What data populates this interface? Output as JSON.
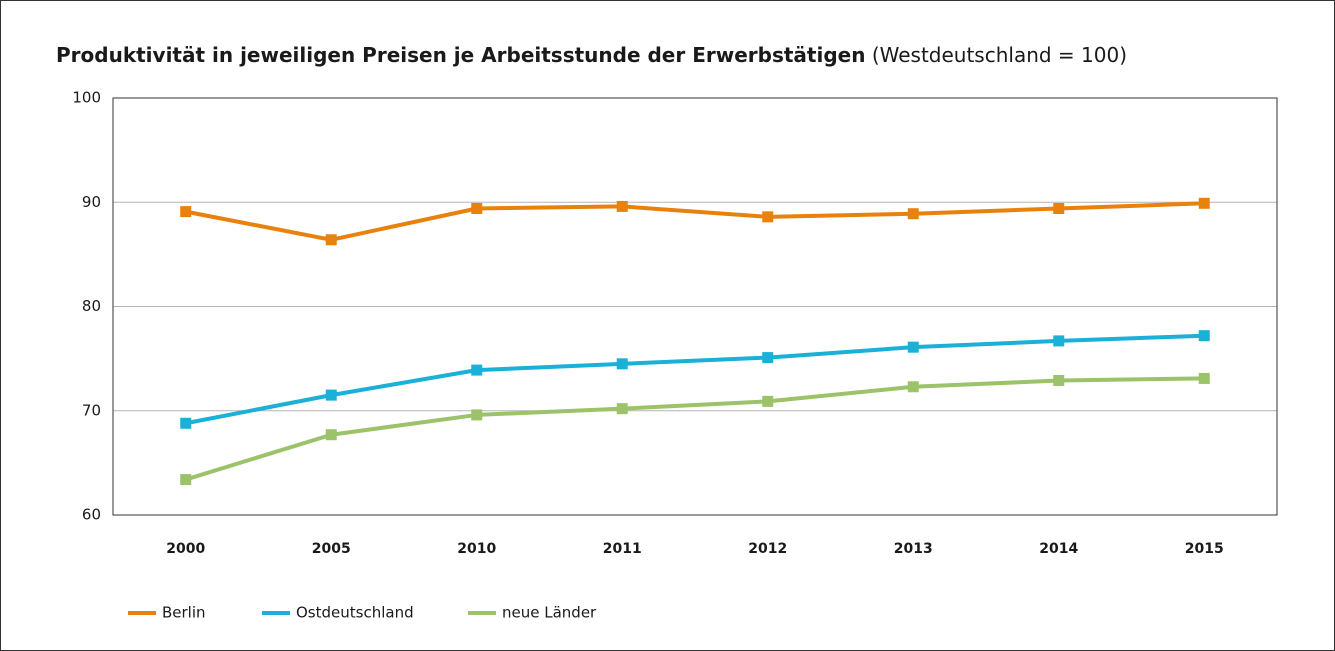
{
  "chart_data": {
    "type": "line",
    "title": "Produktivität in jeweiligen Preisen je Arbeitsstunde der Erwerbstätigen",
    "subtitle": "(Westdeutschland = 100)",
    "categories": [
      "2000",
      "2005",
      "2010",
      "2011",
      "2012",
      "2013",
      "2014",
      "2015"
    ],
    "series": [
      {
        "name": "Berlin",
        "color": "#e8820c",
        "values": [
          89.1,
          86.4,
          89.4,
          89.6,
          88.6,
          88.9,
          89.4,
          89.9
        ]
      },
      {
        "name": "Ostdeutschland",
        "color": "#1ab0d8",
        "values": [
          68.8,
          71.5,
          73.9,
          74.5,
          75.1,
          76.1,
          76.7,
          77.2
        ]
      },
      {
        "name": "neue Länder",
        "color": "#9cc26a",
        "values": [
          63.4,
          67.7,
          69.6,
          70.2,
          70.9,
          72.3,
          72.9,
          73.1
        ]
      }
    ],
    "ylim": [
      60,
      100
    ],
    "yticks": [
      60,
      70,
      80,
      90,
      100
    ],
    "grid": true,
    "legend": "bottom-left"
  }
}
